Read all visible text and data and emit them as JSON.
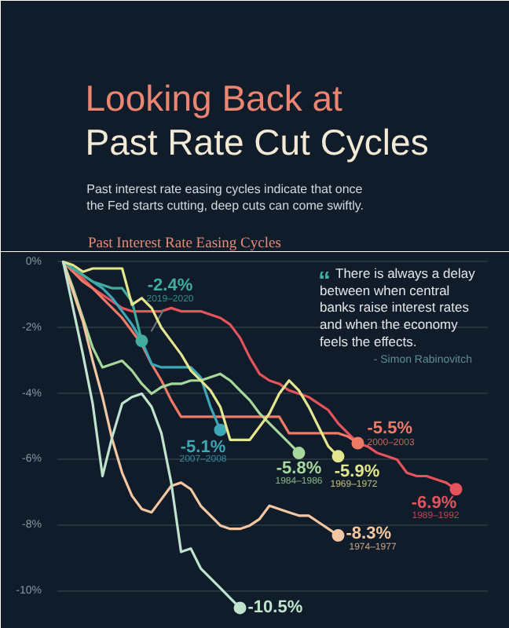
{
  "chart_data": {
    "type": "line",
    "title": "Looking Back at\nPast Rate Cut Cycles",
    "subtitle": "Past interest rate easing cycles indicate that once\nthe Fed starts cutting, deep cuts can come swiftly.",
    "annotations": [
      "Past Interest Rate Easing Cycles",
      "“ There is always a delay\nbetween when central\nbanks raise interest rates\nand when the economy\nfeels the effects.",
      "- Simon Rabinovitch"
    ],
    "categories": [
      null,
      null,
      null,
      null,
      null,
      null,
      null,
      null,
      null,
      null,
      null,
      null,
      null,
      null,
      null,
      null,
      null,
      null,
      null,
      null,
      null,
      null,
      null,
      null,
      null,
      null,
      null,
      null,
      null,
      null,
      null,
      null,
      null,
      null,
      null,
      null,
      null,
      null,
      null,
      null,
      null
    ],
    "ylim": [
      -10.8,
      0.3
    ],
    "yticks": [
      {
        "value": 0,
        "label": "0%"
      },
      {
        "value": -2,
        "label": "-2%"
      },
      {
        "value": -4,
        "label": "-4%"
      },
      {
        "value": -6,
        "label": "-6%"
      },
      {
        "value": -8,
        "label": "-8%"
      },
      {
        "value": -10,
        "label": "-10%"
      }
    ],
    "grid": "y",
    "tick_labels": "y",
    "series": [
      {
        "name": "1989–1992",
        "color": "#e5535c",
        "values": [
          0,
          -0.3,
          -0.5,
          -0.8,
          -1.0,
          -1.2,
          -1.4,
          -1.5,
          -1.5,
          -1.5,
          -1.5,
          -1.4,
          -1.5,
          -1.5,
          -1.5,
          -1.6,
          -1.7,
          -1.9,
          -2.3,
          -2.9,
          -3.4,
          -3.6,
          -3.7,
          -3.9,
          -4.0,
          -4.1,
          -4.3,
          -4.5,
          -4.9,
          -5.2,
          -5.5,
          -5.6,
          -5.8,
          -5.9,
          -6.0,
          -6.4,
          -6.5,
          -6.5,
          -6.6,
          -6.7,
          -6.9
        ],
        "value_labels": [
          null,
          null,
          null,
          null,
          null,
          null,
          null,
          null,
          null,
          null,
          null,
          null,
          null,
          null,
          null,
          null,
          null,
          null,
          null,
          null,
          null,
          null,
          null,
          null,
          null,
          null,
          null,
          null,
          null,
          null,
          null,
          null,
          null,
          null,
          null,
          null,
          null,
          null,
          null,
          null,
          "-6.9%"
        ]
      },
      {
        "name": "2000–2003",
        "color": "#ee7a66",
        "values": [
          0,
          -0.3,
          -0.6,
          -0.8,
          -1.1,
          -1.4,
          -1.7,
          -2.1,
          -2.5,
          -3.1,
          -3.6,
          -4.2,
          -4.7,
          -4.7,
          -4.7,
          -4.7,
          -4.7,
          -4.7,
          -4.7,
          -4.7,
          -4.7,
          -4.7,
          -4.7,
          -5.2,
          -5.2,
          -5.2,
          -5.2,
          -5.2,
          -5.2,
          -5.3,
          -5.5,
          null,
          null,
          null,
          null,
          null,
          null,
          null,
          null,
          null,
          null
        ],
        "value_labels": [
          null,
          null,
          null,
          null,
          null,
          null,
          null,
          null,
          null,
          null,
          null,
          null,
          null,
          null,
          null,
          null,
          null,
          null,
          null,
          null,
          null,
          null,
          null,
          null,
          null,
          null,
          null,
          null,
          null,
          null,
          "-5.5%",
          null,
          null,
          null,
          null,
          null,
          null,
          null,
          null,
          null,
          null
        ]
      },
      {
        "name": "2007–2008",
        "color": "#3fa6b6",
        "values": [
          0,
          -0.2,
          -0.4,
          -0.6,
          -0.8,
          -1.1,
          -1.5,
          -1.9,
          -2.4,
          -3.1,
          -3.2,
          -3.2,
          -3.2,
          -3.2,
          -3.5,
          -4.4,
          -5.1,
          null,
          null,
          null,
          null,
          null,
          null,
          null,
          null,
          null,
          null,
          null,
          null,
          null,
          null,
          null,
          null,
          null,
          null,
          null,
          null,
          null,
          null,
          null,
          null
        ],
        "value_labels": [
          null,
          null,
          null,
          null,
          null,
          null,
          null,
          null,
          null,
          null,
          null,
          null,
          null,
          null,
          null,
          null,
          "-5.1%",
          null,
          null,
          null,
          null,
          null,
          null,
          null,
          null,
          null,
          null,
          null,
          null,
          null,
          null,
          null,
          null,
          null,
          null,
          null,
          null,
          null,
          null,
          null,
          null
        ]
      },
      {
        "name": "2019–2020",
        "color": "#40ad9f",
        "values": [
          0,
          -0.2,
          -0.4,
          -0.6,
          -0.7,
          -0.8,
          -0.8,
          -1.2,
          -2.4,
          null,
          null,
          null,
          null,
          null,
          null,
          null,
          null,
          null,
          null,
          null,
          null,
          null,
          null,
          null,
          null,
          null,
          null,
          null,
          null,
          null,
          null,
          null,
          null,
          null,
          null,
          null,
          null,
          null,
          null,
          null,
          null
        ],
        "value_labels": [
          null,
          null,
          null,
          null,
          null,
          null,
          null,
          null,
          "-2.4%",
          null,
          null,
          null,
          null,
          null,
          null,
          null,
          null,
          null,
          null,
          null,
          null,
          null,
          null,
          null,
          null,
          null,
          null,
          null,
          null,
          null,
          null,
          null,
          null,
          null,
          null,
          null,
          null,
          null,
          null,
          null,
          null
        ]
      },
      {
        "name": "1984–1986",
        "color": "#a7d89b",
        "values": [
          0,
          -0.8,
          -1.7,
          -2.6,
          -3.2,
          -3.1,
          -3.0,
          -3.3,
          -3.7,
          -4.0,
          -3.8,
          -3.7,
          -3.7,
          -3.6,
          -3.6,
          -3.5,
          -3.4,
          -3.6,
          -3.9,
          -4.2,
          -4.6,
          -4.9,
          -5.2,
          -5.5,
          -5.8,
          null,
          null,
          null,
          null,
          null,
          null,
          null,
          null,
          null,
          null,
          null,
          null,
          null,
          null,
          null,
          null
        ],
        "value_labels": [
          null,
          null,
          null,
          null,
          null,
          null,
          null,
          null,
          null,
          null,
          null,
          null,
          null,
          null,
          null,
          null,
          null,
          null,
          null,
          null,
          null,
          null,
          null,
          null,
          "-5.8%",
          null,
          null,
          null,
          null,
          null,
          null,
          null,
          null,
          null,
          null,
          null,
          null,
          null,
          null,
          null,
          null
        ]
      },
      {
        "name": "1969–1972",
        "color": "#e3e68c",
        "values": [
          0,
          -0.1,
          -0.3,
          -0.2,
          -0.2,
          -0.2,
          -0.2,
          -1.3,
          -1.1,
          -1.4,
          -2.0,
          -2.4,
          -2.8,
          -3.3,
          -3.6,
          -3.9,
          -4.4,
          -5.4,
          -5.4,
          -5.4,
          -5.0,
          -4.6,
          -4.0,
          -3.6,
          -3.9,
          -4.4,
          -5.0,
          -5.6,
          -5.9,
          null,
          null,
          null,
          null,
          null,
          null,
          null,
          null,
          null,
          null,
          null,
          null
        ],
        "value_labels": [
          null,
          null,
          null,
          null,
          null,
          null,
          null,
          null,
          null,
          null,
          null,
          null,
          null,
          null,
          null,
          null,
          null,
          null,
          null,
          null,
          null,
          null,
          null,
          null,
          null,
          null,
          null,
          null,
          "-5.9%",
          null,
          null,
          null,
          null,
          null,
          null,
          null,
          null,
          null,
          null,
          null,
          null
        ]
      },
      {
        "name": "1974–1977",
        "color": "#f4c7a2",
        "values": [
          0,
          -0.9,
          -1.8,
          -3.0,
          -4.1,
          -5.4,
          -6.4,
          -7.1,
          -7.5,
          -7.6,
          -7.2,
          -6.8,
          -6.7,
          -6.9,
          -7.4,
          -7.7,
          -8.0,
          -8.1,
          -8.1,
          -8.0,
          -7.8,
          -7.4,
          -7.5,
          -7.6,
          -7.7,
          -7.7,
          -7.9,
          -8.1,
          -8.3,
          null,
          null,
          null,
          null,
          null,
          null,
          null,
          null,
          null,
          null,
          null,
          null
        ],
        "value_labels": [
          null,
          null,
          null,
          null,
          null,
          null,
          null,
          null,
          null,
          null,
          null,
          null,
          null,
          null,
          null,
          null,
          null,
          null,
          null,
          null,
          null,
          null,
          null,
          null,
          null,
          null,
          null,
          null,
          "-8.3%",
          null,
          null,
          null,
          null,
          null,
          null,
          null,
          null,
          null,
          null,
          null,
          null
        ]
      },
      {
        "color": "#bfe3cc",
        "values": [
          0,
          -1.4,
          -2.8,
          -4.3,
          -6.5,
          -5.3,
          -4.3,
          -4.1,
          -4.0,
          -4.4,
          -5.2,
          -6.7,
          -8.8,
          -8.7,
          -9.3,
          -9.6,
          -9.9,
          -10.2,
          -10.5,
          null,
          null,
          null,
          null,
          null,
          null,
          null,
          null,
          null,
          null,
          null,
          null,
          null,
          null,
          null,
          null,
          null,
          null,
          null,
          null,
          null,
          null
        ],
        "value_labels": [
          null,
          null,
          null,
          null,
          null,
          null,
          null,
          null,
          null,
          null,
          null,
          null,
          null,
          null,
          null,
          null,
          null,
          null,
          "-10.5%",
          null,
          null,
          null,
          null,
          null,
          null,
          null,
          null,
          null,
          null,
          null,
          null,
          null,
          null,
          null,
          null,
          null,
          null,
          null,
          null,
          null,
          null
        ]
      }
    ]
  }
}
